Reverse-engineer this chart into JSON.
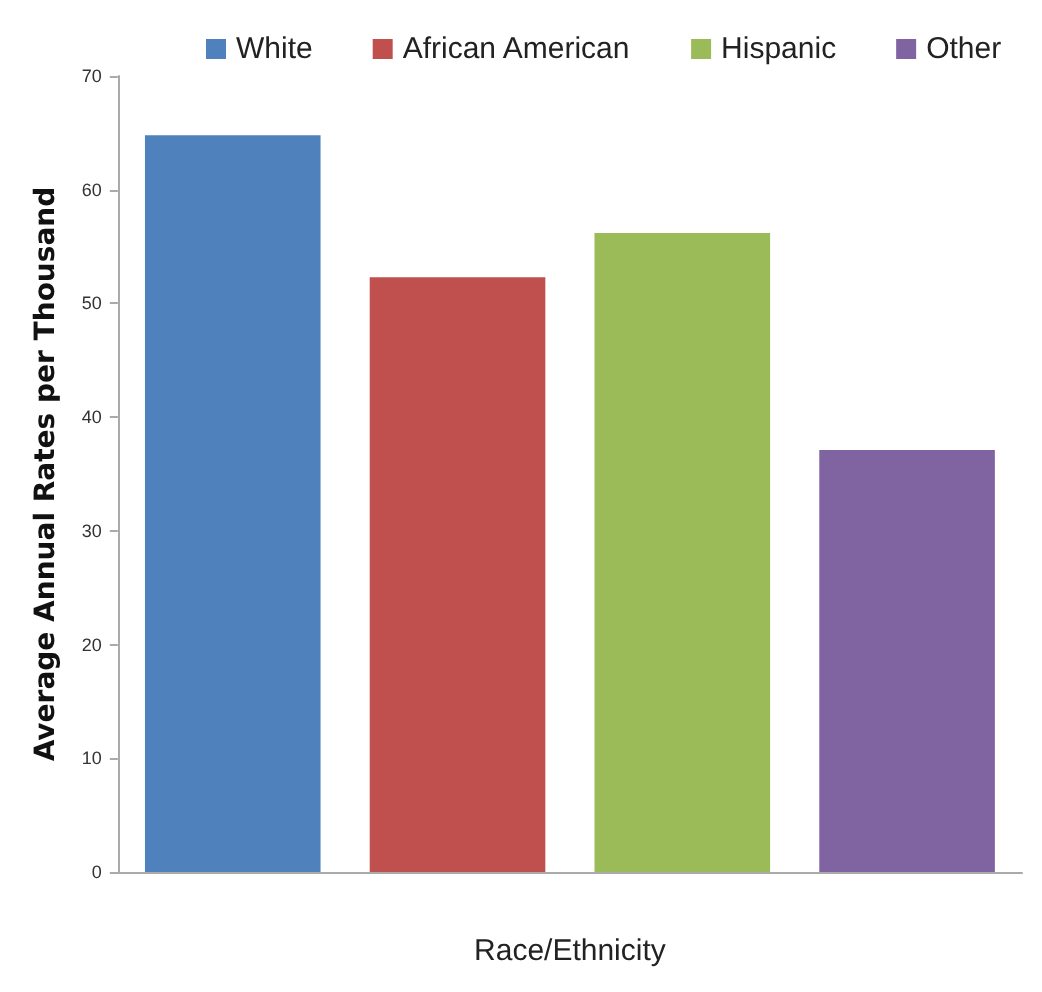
{
  "chart_data": {
    "type": "bar",
    "xlabel": "Race/Ethnicity",
    "ylabel": "Average Annual Rates per Thousand",
    "categories": [
      null
    ],
    "series": [
      {
        "name": "White",
        "color": "#4f81bd",
        "values": [
          64.8
        ]
      },
      {
        "name": "African American",
        "color": "#c0504d",
        "values": [
          52.3
        ]
      },
      {
        "name": "Hispanic",
        "color": "#9bbb59",
        "values": [
          56.2
        ]
      },
      {
        "name": "Other",
        "color": "#8064a2",
        "values": [
          37.1
        ]
      }
    ],
    "ylim": [
      0,
      70
    ],
    "yticks": [
      0,
      10,
      20,
      30,
      40,
      50,
      60,
      70
    ],
    "grid": false,
    "legend": "top"
  }
}
